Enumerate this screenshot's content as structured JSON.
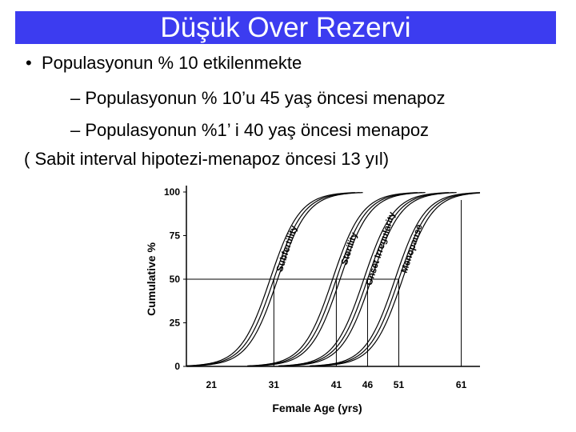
{
  "slide": {
    "title": "Düşük Over Rezervi",
    "colors": {
      "title_bar": "#3c3cf0",
      "title_text": "#ffffff"
    },
    "bullets": [
      {
        "level": 1,
        "marker": "•",
        "text": "Populasyonun % 10 etkilenmekte"
      },
      {
        "level": 2,
        "marker": "–",
        "text": "Populasyonun % 10’u 45 yaş öncesi menapoz"
      },
      {
        "level": 2,
        "marker": "–",
        "text": "Populasyonun %1’ i 40 yaş öncesi menapoz"
      },
      {
        "level": 0,
        "marker": "",
        "text": "( Sabit interval hipotezi-menapoz öncesi 13 yıl)"
      }
    ]
  },
  "chart_data": {
    "type": "line",
    "title": "",
    "xlabel": "Female Age (yrs)",
    "ylabel": "Cumulative %",
    "x_ticks": [
      21,
      31,
      41,
      46,
      51,
      61
    ],
    "y_ticks": [
      0,
      25,
      50,
      75,
      100
    ],
    "xlim": [
      17,
      64
    ],
    "ylim": [
      0,
      100
    ],
    "reference_line_y": 50,
    "series": [
      {
        "name": "Subfertility",
        "x50": 31
      },
      {
        "name": "Sterility",
        "x50": 41
      },
      {
        "name": "Onset Irregularity",
        "x50": 46
      },
      {
        "name": "Menopause",
        "x50": 51
      }
    ],
    "vertical_markers_x": [
      31,
      41,
      46,
      51,
      61
    ]
  }
}
